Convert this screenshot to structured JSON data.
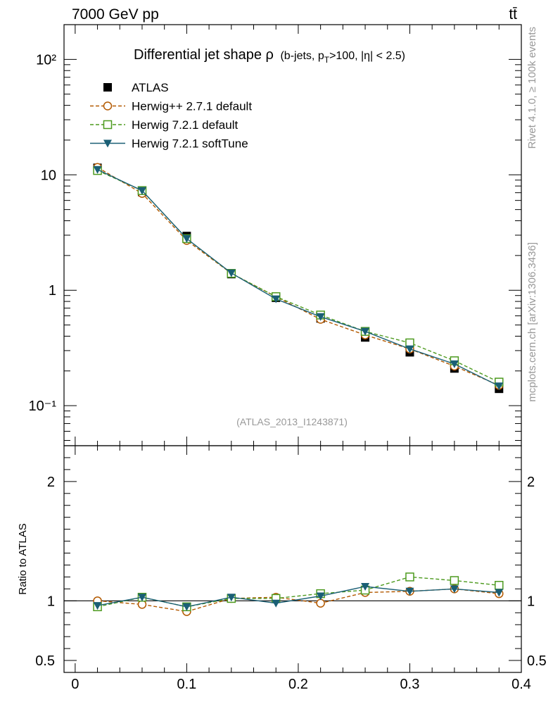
{
  "header": {
    "energy_label": "7000 GeV pp",
    "process_label": "tt̄"
  },
  "side_labels": {
    "rivet": "Rivet 4.1.0, ≥ 100k events",
    "source": "mcplots.cern.ch [arXiv:1306.3436]"
  },
  "chart_data": {
    "type": "line",
    "title_main": "Differential jet shape ρ",
    "title_sub_prefix": "(b-jets, p",
    "title_sub_subscript": "T",
    "title_sub_suffix": ">100, |η| < 2.5)",
    "watermark": "(ATLAS_2013_I1243871)",
    "x": [
      0.02,
      0.06,
      0.1,
      0.14,
      0.18,
      0.22,
      0.26,
      0.3,
      0.34,
      0.38
    ],
    "xlim": [
      -0.01,
      0.4
    ],
    "x_ticks": [
      "0",
      "0.1",
      "0.2",
      "0.3",
      "0.4"
    ],
    "main": {
      "yscale": "log",
      "ylim": [
        0.045,
        200
      ],
      "y_ticks": [
        "10⁻¹",
        "1",
        "10",
        "10²"
      ],
      "series": [
        {
          "name": "ATLAS",
          "style": "data",
          "color": "#000000",
          "values": [
            11.5,
            7.1,
            2.95,
            1.38,
            0.86,
            0.57,
            0.39,
            0.29,
            0.21,
            0.14
          ]
        },
        {
          "name": "Herwig++ 2.7.1 default",
          "style": "dashed-circle",
          "color": "#b35900",
          "values": [
            11.6,
            6.9,
            2.7,
            1.4,
            0.88,
            0.56,
            0.41,
            0.31,
            0.22,
            0.15
          ]
        },
        {
          "name": "Herwig 7.2.1 default",
          "style": "dashed-square",
          "color": "#4d9a1f",
          "values": [
            10.9,
            7.3,
            2.8,
            1.4,
            0.88,
            0.61,
            0.44,
            0.35,
            0.245,
            0.16
          ]
        },
        {
          "name": "Herwig 7.2.1 softTune",
          "style": "solid-triangle",
          "color": "#1a5f75",
          "values": [
            11.1,
            7.3,
            2.8,
            1.41,
            0.84,
            0.59,
            0.44,
            0.31,
            0.23,
            0.148
          ]
        }
      ]
    },
    "ratio": {
      "ylabel": "Ratio to ATLAS",
      "ylim": [
        0.4,
        2.3
      ],
      "y_ticks": [
        "0.5",
        "1",
        "2"
      ],
      "series": [
        {
          "name": "Herwig++ 2.7.1 default",
          "values": [
            1.0,
            0.97,
            0.91,
            1.02,
            1.03,
            0.98,
            1.07,
            1.08,
            1.1,
            1.06
          ]
        },
        {
          "name": "Herwig 7.2.1 default",
          "values": [
            0.95,
            1.03,
            0.95,
            1.02,
            1.02,
            1.06,
            1.09,
            1.2,
            1.17,
            1.13
          ]
        },
        {
          "name": "Herwig 7.2.1 softTune",
          "values": [
            0.96,
            1.03,
            0.95,
            1.03,
            0.98,
            1.04,
            1.12,
            1.08,
            1.1,
            1.07
          ]
        }
      ]
    }
  }
}
